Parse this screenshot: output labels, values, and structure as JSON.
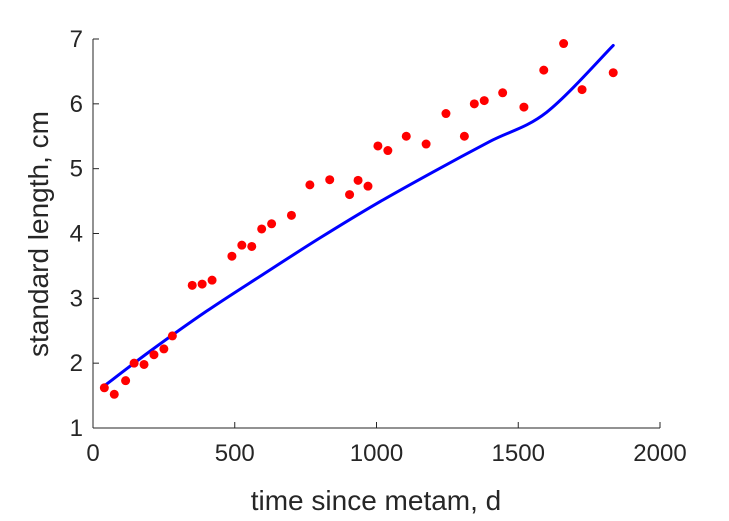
{
  "chart_data": {
    "type": "scatter",
    "xlabel": "time since metam, d",
    "ylabel": "standard length, cm",
    "xlim": [
      0,
      2000
    ],
    "ylim": [
      1,
      7
    ],
    "xticks": [
      0,
      500,
      1000,
      1500,
      2000
    ],
    "yticks": [
      1,
      2,
      3,
      4,
      5,
      6,
      7
    ],
    "grid": false,
    "colors": {
      "points": "#ff0000",
      "fit": "#0000ff",
      "axes": "#262626"
    },
    "series": [
      {
        "kind": "points",
        "x": [
          40,
          75,
          115,
          145,
          180,
          215,
          250,
          280,
          350,
          385,
          420,
          490,
          525,
          560,
          595,
          630,
          700,
          765,
          835,
          905,
          935,
          970,
          1005,
          1040,
          1105,
          1175,
          1245,
          1310,
          1345,
          1380,
          1445,
          1520,
          1590,
          1660,
          1725,
          1835
        ],
        "y": [
          1.62,
          1.52,
          1.73,
          2.0,
          1.98,
          2.13,
          2.22,
          2.42,
          3.2,
          3.22,
          3.28,
          3.65,
          3.82,
          3.8,
          4.07,
          4.15,
          4.28,
          4.75,
          4.83,
          4.6,
          4.82,
          4.73,
          5.35,
          5.28,
          5.5,
          5.38,
          5.85,
          5.5,
          6.0,
          6.05,
          6.17,
          5.95,
          6.52,
          6.93,
          6.22,
          6.48
        ]
      },
      {
        "kind": "fit-line",
        "x": [
          40,
          200,
          400,
          600,
          800,
          1000,
          1200,
          1400,
          1600,
          1835
        ],
        "y": [
          1.65,
          2.18,
          2.8,
          3.37,
          3.93,
          4.46,
          4.95,
          5.42,
          5.87,
          6.9
        ]
      }
    ]
  }
}
